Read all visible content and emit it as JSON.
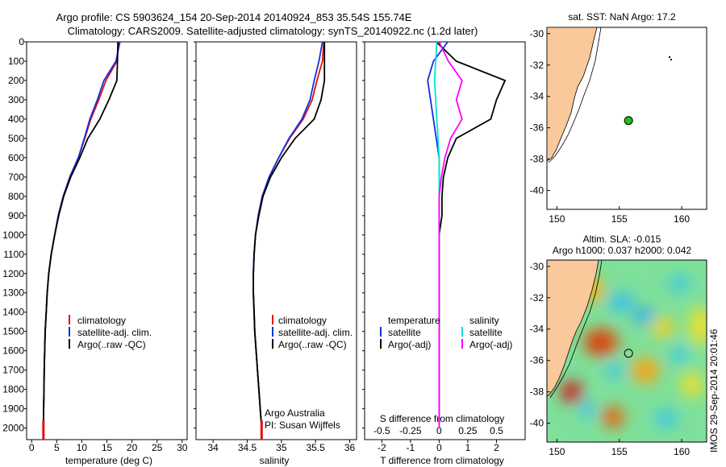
{
  "title": {
    "line1": "Argo profile: CS 5903624_154 20-Sep-2014 20140924_853 35.54S 155.74E",
    "line2": "Climatology: CARS2009. Satellite-adjusted climatology: synTS_20140922.nc (1.2d later)"
  },
  "stamp": "IMOS 29-Sep-2014 20:01:46",
  "depth_ticks": [
    "0",
    "100",
    "200",
    "300",
    "400",
    "500",
    "600",
    "700",
    "800",
    "900",
    "1000",
    "1100",
    "1200",
    "1300",
    "1400",
    "1500",
    "1600",
    "1700",
    "1800",
    "1900",
    "2000"
  ],
  "colors": {
    "climatology": "#e01010",
    "satellite": "#1030e0",
    "argo": "#000000",
    "sat_s": "#00e0e0",
    "argo_s": "#ff00ff",
    "land": "#f9c89b"
  },
  "panels": {
    "temperature": {
      "xlabel": "temperature (deg C)",
      "ticks": [
        "0",
        "5",
        "10",
        "15",
        "20",
        "25",
        "30"
      ],
      "legend": [
        "climatology",
        "satellite-adj. clim.",
        "Argo(..raw -QC)"
      ]
    },
    "salinity": {
      "xlabel": "salinity",
      "ticks": [
        "34",
        "34.5",
        "35",
        "35.5",
        "36"
      ],
      "legend": [
        "climatology",
        "satellite-adj. clim.",
        "Argo(..raw -QC)"
      ],
      "note1": "Argo Australia",
      "note2": "PI: Susan Wijffels"
    },
    "difference": {
      "xlabel": "T difference from climatology",
      "top_label": "S difference from climatology",
      "t_ticks": [
        "-2",
        "-1",
        "0",
        "1",
        "2"
      ],
      "s_ticks": [
        "-0.5",
        "-0.25",
        "0",
        "0.25",
        "0.5"
      ],
      "leg_t_title": "temperature",
      "leg_s_title": "salinity",
      "leg_t": [
        "satellite",
        "Argo(-adj)"
      ],
      "leg_s": [
        "satellite",
        "Argo(-adj)"
      ]
    },
    "sst_map": {
      "title": "sat. SST: NaN Argo: 17.2",
      "lat_ticks": [
        "-30",
        "-32",
        "-34",
        "-36",
        "-38",
        "-40"
      ],
      "lon_ticks": [
        "150",
        "155",
        "160"
      ]
    },
    "sla_map": {
      "title1": "Altim. SLA: -0.015",
      "title2": "Argo h1000: 0.037 h2000: 0.042",
      "lat_ticks": [
        "-30",
        "-32",
        "-34",
        "-36",
        "-38",
        "-40"
      ],
      "lon_ticks": [
        "150",
        "155",
        "160"
      ]
    }
  },
  "chart_data": [
    {
      "type": "line",
      "panel": "temperature",
      "xlabel": "temperature (deg C)",
      "ylabel": "",
      "xlim": [
        -1,
        31
      ],
      "ylim": [
        2060,
        0
      ],
      "y_reversed": true,
      "series": [
        {
          "name": "climatology",
          "x": [
            17.3,
            17.0,
            14.8,
            13.4,
            11.8,
            10.6,
            9.3,
            7.6,
            6.3,
            5.3,
            4.6,
            3.9,
            3.4,
            3.1,
            2.9,
            2.7,
            2.6,
            2.5,
            2.45,
            2.4,
            2.35
          ],
          "y": [
            0,
            100,
            200,
            300,
            400,
            500,
            600,
            700,
            800,
            900,
            1000,
            1100,
            1200,
            1300,
            1400,
            1500,
            1600,
            1700,
            1800,
            1900,
            2000
          ]
        },
        {
          "name": "satellite-adj. clim.",
          "x": [
            17.6,
            16.8,
            14.4,
            13.1,
            11.6,
            10.5,
            9.3,
            7.6,
            6.3,
            5.3,
            4.6,
            3.9,
            3.4,
            3.1,
            2.9,
            2.7,
            2.6,
            2.5,
            2.45,
            2.4,
            2.35
          ],
          "y": [
            0,
            100,
            200,
            300,
            400,
            500,
            600,
            700,
            800,
            900,
            1000,
            1100,
            1200,
            1300,
            1400,
            1500,
            1600,
            1700,
            1800,
            1900,
            2000
          ]
        },
        {
          "name": "Argo(..raw -QC)",
          "x": [
            17.2,
            17.1,
            17.0,
            15.4,
            13.6,
            11.2,
            9.6,
            7.8,
            6.4,
            5.4,
            4.6,
            3.9,
            3.4,
            3.1,
            2.9,
            2.7,
            2.6,
            2.5,
            2.45,
            2.4,
            2.35
          ],
          "y": [
            0,
            100,
            200,
            300,
            400,
            500,
            600,
            700,
            800,
            900,
            1000,
            1100,
            1200,
            1300,
            1400,
            1500,
            1600,
            1700,
            1800,
            1900,
            2000
          ]
        }
      ]
    },
    {
      "type": "line",
      "panel": "salinity",
      "xlabel": "salinity",
      "ylabel": "",
      "xlim": [
        33.75,
        36.1
      ],
      "ylim": [
        2060,
        0
      ],
      "y_reversed": true,
      "series": [
        {
          "name": "climatology",
          "x": [
            35.62,
            35.6,
            35.52,
            35.45,
            35.32,
            35.12,
            34.96,
            34.82,
            34.72,
            34.66,
            34.62,
            34.6,
            34.59,
            34.59,
            34.6,
            34.61,
            34.63,
            34.65,
            34.67,
            34.69,
            34.71
          ],
          "y": [
            0,
            100,
            200,
            300,
            400,
            500,
            600,
            700,
            800,
            900,
            1000,
            1100,
            1200,
            1300,
            1400,
            1500,
            1600,
            1700,
            1800,
            1900,
            2000
          ]
        },
        {
          "name": "satellite-adj. clim.",
          "x": [
            35.6,
            35.55,
            35.48,
            35.42,
            35.3,
            35.11,
            34.96,
            34.82,
            34.72,
            34.66,
            34.62,
            34.6,
            34.59,
            34.59,
            34.6,
            34.61,
            34.63,
            34.65,
            34.67,
            34.69,
            34.71
          ],
          "y": [
            0,
            100,
            200,
            300,
            400,
            500,
            600,
            700,
            800,
            900,
            1000,
            1100,
            1200,
            1300,
            1400,
            1500,
            1600,
            1700,
            1800,
            1900,
            2000
          ]
        },
        {
          "name": "Argo(..raw -QC)",
          "x": [
            35.63,
            35.63,
            35.63,
            35.58,
            35.48,
            35.2,
            35.0,
            34.84,
            34.73,
            34.67,
            34.62,
            34.6,
            34.59,
            34.59,
            34.6,
            34.61,
            34.63,
            34.65,
            34.67,
            34.69,
            34.71
          ],
          "y": [
            0,
            100,
            200,
            300,
            400,
            500,
            600,
            700,
            800,
            900,
            1000,
            1100,
            1200,
            1300,
            1400,
            1500,
            1600,
            1700,
            1800,
            1900,
            2000
          ]
        }
      ]
    },
    {
      "type": "line",
      "panel": "difference",
      "xlabel": "T difference from climatology",
      "x2label": "S difference from climatology",
      "xlim": [
        -2.6,
        3.0
      ],
      "x2lim": [
        -0.65,
        0.75
      ],
      "ylim": [
        2060,
        0
      ],
      "y_reversed": true,
      "series": [
        {
          "name": "temperature satellite",
          "axis": "T",
          "x": [
            0.3,
            -0.2,
            -0.4,
            -0.3,
            -0.2,
            -0.1,
            0.0,
            0.0,
            0.0,
            0.0,
            0.0,
            0.0,
            0.0,
            0.0,
            0.0,
            0.0,
            0.0,
            0.0,
            0.0,
            0.0,
            0.0
          ],
          "y": [
            0,
            100,
            200,
            300,
            400,
            500,
            600,
            700,
            800,
            900,
            1000,
            1100,
            1200,
            1300,
            1400,
            1500,
            1600,
            1700,
            1800,
            1900,
            2000
          ]
        },
        {
          "name": "temperature Argo(-adj)",
          "x": [
            -0.1,
            0.6,
            2.3,
            2.0,
            1.8,
            0.6,
            0.3,
            0.15,
            0.1,
            0.1,
            0.0,
            0.0,
            0.0,
            0.0,
            0.0,
            0.0,
            0.0,
            0.0,
            0.0,
            0.0,
            0.0
          ],
          "y": [
            0,
            100,
            200,
            300,
            400,
            500,
            600,
            700,
            800,
            900,
            1000,
            1100,
            1200,
            1300,
            1400,
            1500,
            1600,
            1700,
            1800,
            1900,
            2000
          ],
          "axis": "T"
        },
        {
          "name": "salinity satellite",
          "axis": "S",
          "x": [
            -0.02,
            -0.03,
            -0.04,
            -0.03,
            -0.02,
            -0.01,
            0.0,
            0.0,
            0.0,
            0.0,
            0.0,
            0.0,
            0.0,
            0.0,
            0.0,
            0.0,
            0.0,
            0.0,
            0.0,
            0.0,
            0.0
          ],
          "y": [
            0,
            100,
            200,
            300,
            400,
            500,
            600,
            700,
            800,
            900,
            1000,
            1100,
            1200,
            1300,
            1400,
            1500,
            1600,
            1700,
            1800,
            1900,
            2000
          ]
        },
        {
          "name": "salinity Argo(-adj)",
          "axis": "S",
          "x": [
            0.0,
            0.08,
            0.2,
            0.15,
            0.2,
            0.1,
            0.05,
            0.02,
            0.0,
            0.0,
            0.0,
            0.0,
            0.0,
            0.0,
            0.0,
            0.0,
            0.0,
            0.0,
            0.0,
            0.0,
            0.0
          ],
          "y": [
            0,
            100,
            200,
            300,
            400,
            500,
            600,
            700,
            800,
            900,
            1000,
            1100,
            1200,
            1300,
            1400,
            1500,
            1600,
            1700,
            1800,
            1900,
            2000
          ]
        }
      ]
    },
    {
      "type": "scatter",
      "panel": "sst_map",
      "title": "sat. SST: NaN Argo: 17.2",
      "xlim": [
        149.2,
        162
      ],
      "ylim": [
        -41.2,
        -29.6
      ],
      "points": [
        {
          "x": 155.74,
          "y": -35.54
        }
      ]
    },
    {
      "type": "heatmap",
      "panel": "sla_map",
      "title": "Altim. SLA: -0.015",
      "xlim": [
        149.2,
        162
      ],
      "ylim": [
        -41.2,
        -29.6
      ],
      "points": [
        {
          "x": 155.74,
          "y": -35.54
        }
      ]
    }
  ]
}
